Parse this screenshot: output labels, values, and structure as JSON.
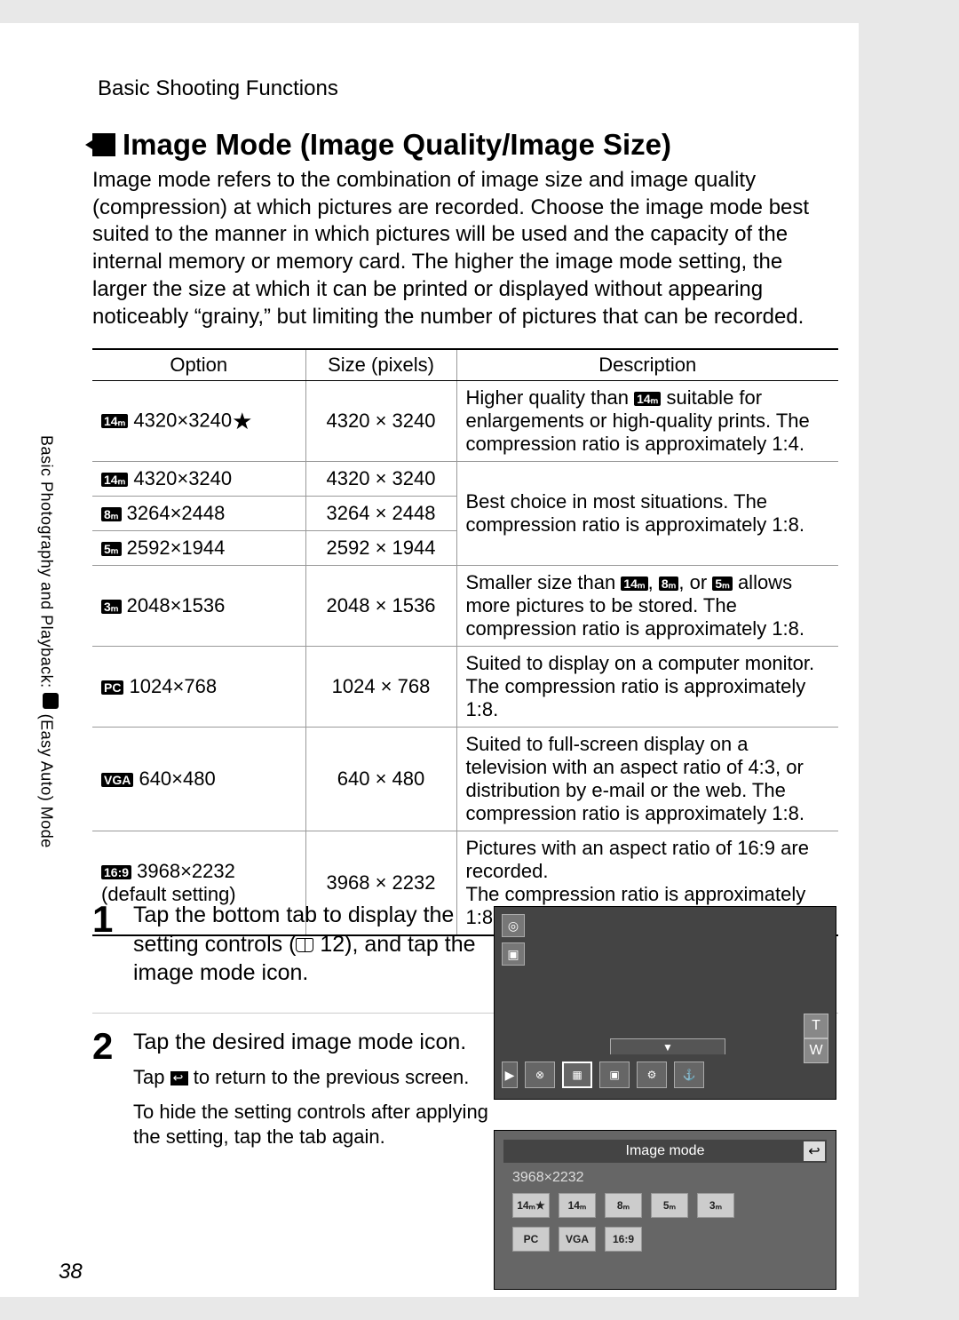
{
  "breadcrumb": "Basic Shooting Functions",
  "side_tab": {
    "prefix": "Basic Photography and Playback: ",
    "suffix": " (Easy Auto) Mode"
  },
  "heading": "Image Mode (Image Quality/Image Size)",
  "intro": "Image mode refers to the combination of image size and image quality (compression) at which pictures are recorded. Choose the image mode best suited to the manner in which pictures will be used and the capacity of the internal memory or memory card. The higher the image mode setting, the larger the size at which it can be printed or displayed without appearing noticeably “grainy,” but limiting the number of pictures that can be recorded.",
  "table": {
    "headers": {
      "option": "Option",
      "size": "Size (pixels)",
      "description": "Description"
    },
    "rows": {
      "r1": {
        "badge": "14ₘ",
        "label": " 4320×3240",
        "star": "★",
        "size": "4320 × 3240"
      },
      "r1desc": {
        "pre": "Higher quality than ",
        "badge": "14ₘ",
        "post": " suitable for enlargements or high-quality prints. The compression ratio is approximately 1:4."
      },
      "r2": {
        "badge": "14ₘ",
        "label": " 4320×3240",
        "size": "4320 × 3240"
      },
      "r3": {
        "badge": "8ₘ",
        "label": " 3264×2448",
        "size": "3264 × 2448"
      },
      "r4": {
        "badge": "5ₘ",
        "label": " 2592×1944",
        "size": "2592 × 1944"
      },
      "r234desc": "Best choice in most situations. The compression ratio is approximately 1:8.",
      "r5": {
        "badge": "3ₘ",
        "label": " 2048×1536",
        "size": "2048 × 1536"
      },
      "r5desc": {
        "pre": "Smaller size than ",
        "b1": "14ₘ",
        "mid1": ", ",
        "b2": "8ₘ",
        "mid2": ", or ",
        "b3": "5ₘ",
        "post": " allows more pictures to be stored. The compression ratio is approximately 1:8."
      },
      "r6": {
        "badge": "PC",
        "label": " 1024×768",
        "size": "1024 × 768",
        "desc": "Suited to display on a computer monitor. The compression ratio is approximately 1:8."
      },
      "r7": {
        "badge": "VGA",
        "label": " 640×480",
        "size": "640 × 480",
        "desc": "Suited to full-screen display on a television with an aspect ratio of 4:3, or distribution by e-mail or the web. The compression ratio is approximately 1:8."
      },
      "r8": {
        "badge": "16:9",
        "label": " 3968×2232",
        "sub": "(default setting)",
        "size": "3968 × 2232",
        "desc": "Pictures with an aspect ratio of 16:9 are recorded.\nThe compression ratio is approximately 1:8."
      }
    }
  },
  "steps": {
    "s1": {
      "num": "1",
      "text_a": "Tap the bottom tab to display the setting controls (",
      "text_b": " 12), and tap the image mode icon."
    },
    "s2": {
      "num": "2",
      "text": "Tap the desired image mode icon.",
      "sub1a": "Tap ",
      "sub1b": " to return to the previous screen.",
      "sub2": "To hide the setting controls after applying the setting, tap the tab again."
    }
  },
  "fig1": {
    "t": "T",
    "w": "W",
    "bottom": [
      "▶",
      "⊗",
      "▦",
      "▣",
      "⚙",
      "⚓"
    ],
    "tab": "▼"
  },
  "fig2": {
    "title": "Image mode",
    "current": "3968×2232",
    "back": "↩",
    "options": [
      "14ₘ★",
      "14ₘ",
      "8ₘ",
      "5ₘ",
      "3ₘ",
      "PC",
      "VGA",
      "16:9"
    ]
  },
  "page_number": "38"
}
